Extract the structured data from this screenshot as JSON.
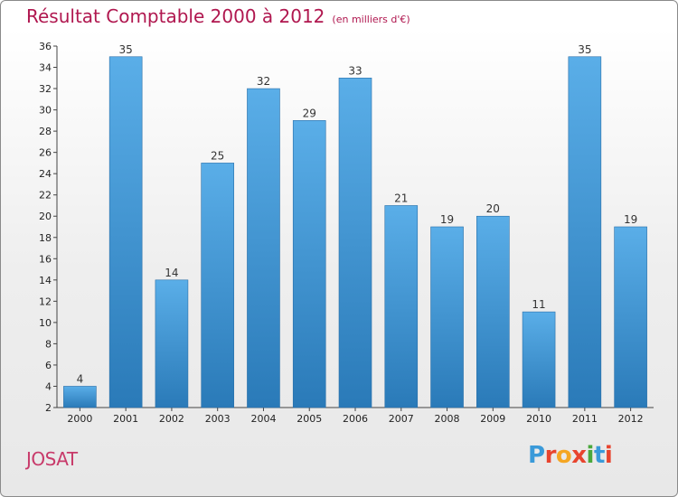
{
  "header": {
    "title": "Résultat Comptable 2000 à 2012",
    "subtitle": "(en milliers d'€)"
  },
  "footer": {
    "location": "JOSAT",
    "logo_letters": [
      "P",
      "r",
      "o",
      "x",
      "i",
      "t",
      "i"
    ],
    "logo_colors": [
      "#3a9ad9",
      "#e8442e",
      "#f5a623",
      "#e8442e",
      "#4aa83c",
      "#3a9ad9",
      "#e8442e"
    ]
  },
  "chart_data": {
    "type": "bar",
    "title": "Résultat Comptable 2000 à 2012",
    "subtitle": "(en milliers d'€)",
    "xlabel": "",
    "ylabel": "",
    "categories": [
      "2000",
      "2001",
      "2002",
      "2003",
      "2004",
      "2005",
      "2006",
      "2007",
      "2008",
      "2009",
      "2010",
      "2011",
      "2012"
    ],
    "values": [
      4,
      35,
      14,
      25,
      32,
      29,
      33,
      21,
      19,
      20,
      11,
      35,
      19
    ],
    "value_labels": [
      "4",
      "35",
      "14",
      "25",
      "32",
      "29",
      "33",
      "21",
      "19",
      "20",
      "11",
      "35",
      "19"
    ],
    "ylim": [
      2,
      36
    ],
    "yticks": [
      2,
      4,
      6,
      8,
      10,
      12,
      14,
      16,
      18,
      20,
      22,
      24,
      26,
      28,
      30,
      32,
      34,
      36
    ],
    "ytick_labels": [
      "2",
      "4",
      "6",
      "8",
      "10",
      "12",
      "14",
      "16",
      "18",
      "20",
      "22",
      "24",
      "26",
      "28",
      "30",
      "32",
      "34",
      "36"
    ],
    "grid": false,
    "bar_color_top": "#5aaee8",
    "bar_color_bottom": "#2a7ab8"
  }
}
